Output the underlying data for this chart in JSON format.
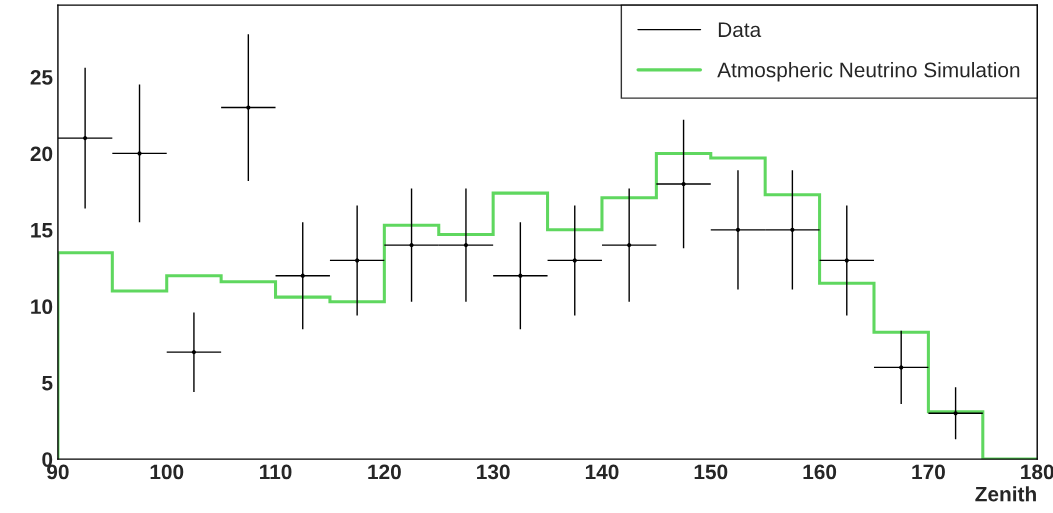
{
  "chart_data": {
    "type": "histogram",
    "xlabel": "Zenith",
    "bins": [
      90,
      95,
      100,
      105,
      110,
      115,
      120,
      125,
      130,
      135,
      140,
      145,
      150,
      155,
      160,
      165,
      170,
      175,
      180
    ],
    "series": [
      {
        "name": "Data",
        "type": "scatter",
        "color": "#000000",
        "marker": "none",
        "x": [
          92.5,
          97.5,
          102.5,
          107.5,
          112.5,
          117.5,
          122.5,
          127.5,
          132.5,
          137.5,
          142.5,
          147.5,
          152.5,
          157.5,
          162.5,
          167.5,
          172.5
        ],
        "values": [
          21,
          20,
          7,
          23,
          12,
          13,
          14,
          14,
          12,
          13,
          14,
          18,
          15,
          15,
          13,
          6,
          3
        ],
        "errors": [
          4.6,
          4.5,
          2.6,
          4.8,
          3.5,
          3.6,
          3.7,
          3.7,
          3.5,
          3.6,
          3.7,
          4.2,
          3.9,
          3.9,
          3.6,
          2.4,
          1.7
        ],
        "xerrors": [
          2.5,
          2.5,
          2.5,
          2.5,
          2.5,
          2.5,
          2.5,
          2.5,
          2.5,
          2.5,
          2.5,
          2.5,
          2.5,
          2.5,
          2.5,
          2.5,
          2.5
        ]
      },
      {
        "name": "Atmospheric Neutrino Simulation",
        "color": "#5fd75f",
        "values": [
          13.5,
          11,
          12,
          11.6,
          10.6,
          10.3,
          15.3,
          14.7,
          17.4,
          15,
          17.1,
          20,
          19.7,
          17.3,
          11.5,
          8.3,
          3.1,
          0
        ]
      }
    ],
    "xlim": [
      90,
      180
    ],
    "xticks": [
      90,
      100,
      110,
      120,
      130,
      140,
      150,
      160,
      170,
      180
    ],
    "ylim": [
      0,
      29.7
    ],
    "yticks": [
      0,
      5,
      10,
      15,
      20,
      25
    ],
    "grid": false,
    "legend": "top right"
  }
}
